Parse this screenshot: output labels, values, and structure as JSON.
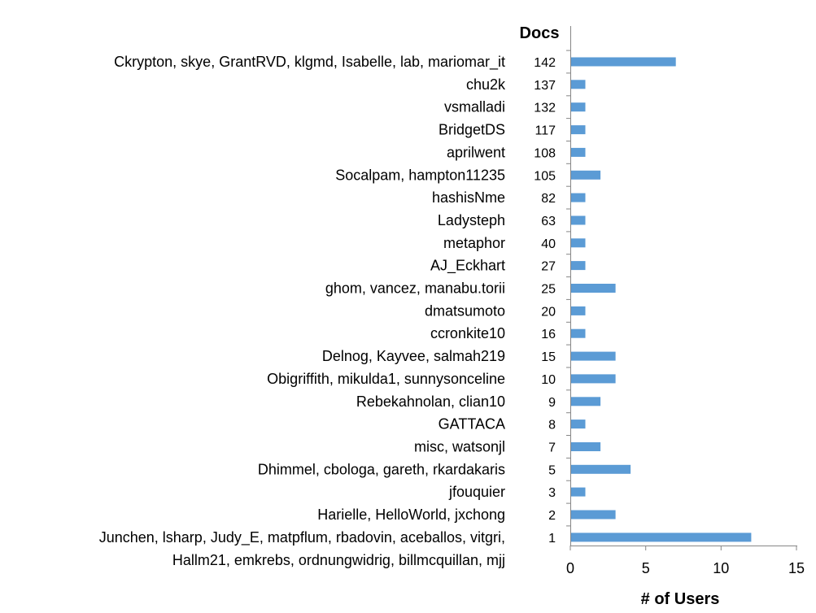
{
  "chart_data": {
    "type": "bar",
    "orientation": "horizontal",
    "title": "",
    "doc_column_header": "Docs",
    "xlabel": "# of Users",
    "ylabel": "",
    "xlim": [
      0,
      15
    ],
    "x_ticks": [
      "0",
      "5",
      "10",
      "15"
    ],
    "grid": false,
    "bar_color": "#5b9bd5",
    "rows": [
      {
        "users": "Ckrypton, skye, GrantRVD, klgmd, Isabelle, lab, mariomar_it",
        "docs": "142",
        "value": 7
      },
      {
        "users": "chu2k",
        "docs": "137",
        "value": 1
      },
      {
        "users": "vsmalladi",
        "docs": "132",
        "value": 1
      },
      {
        "users": "BridgetDS",
        "docs": "117",
        "value": 1
      },
      {
        "users": "aprilwent",
        "docs": "108",
        "value": 1
      },
      {
        "users": "Socalpam, hampton11235",
        "docs": "105",
        "value": 2
      },
      {
        "users": "hashisNme",
        "docs": "82",
        "value": 1
      },
      {
        "users": "Ladysteph",
        "docs": "63",
        "value": 1
      },
      {
        "users": "metaphor",
        "docs": "40",
        "value": 1
      },
      {
        "users": "AJ_Eckhart",
        "docs": "27",
        "value": 1
      },
      {
        "users": "ghom, vancez, manabu.torii",
        "docs": "25",
        "value": 3
      },
      {
        "users": "dmatsumoto",
        "docs": "20",
        "value": 1
      },
      {
        "users": "ccronkite10",
        "docs": "16",
        "value": 1
      },
      {
        "users": "Delnog, Kayvee, salmah219",
        "docs": "15",
        "value": 3
      },
      {
        "users": "Obigriffith, mikulda1, sunnysonceline",
        "docs": "10",
        "value": 3
      },
      {
        "users": "Rebekahnolan, clian10",
        "docs": "9",
        "value": 2
      },
      {
        "users": "GATTACA",
        "docs": "8",
        "value": 1
      },
      {
        "users": "misc, watsonjl",
        "docs": "7",
        "value": 2
      },
      {
        "users": "Dhimmel, cbologa, gareth, rkardakaris",
        "docs": "5",
        "value": 4
      },
      {
        "users": "jfouquier",
        "docs": "3",
        "value": 1
      },
      {
        "users": "Harielle, HelloWorld, jxchong",
        "docs": "2",
        "value": 3
      },
      {
        "users": "Junchen, lsharp, Judy_E, matpflum, rbadovin, aceballos, vitgri,",
        "users_line2": "Hallm21, emkrebs, ordnungwidrig, billmcquillan, mjj",
        "docs": "1",
        "value": 12
      }
    ]
  }
}
